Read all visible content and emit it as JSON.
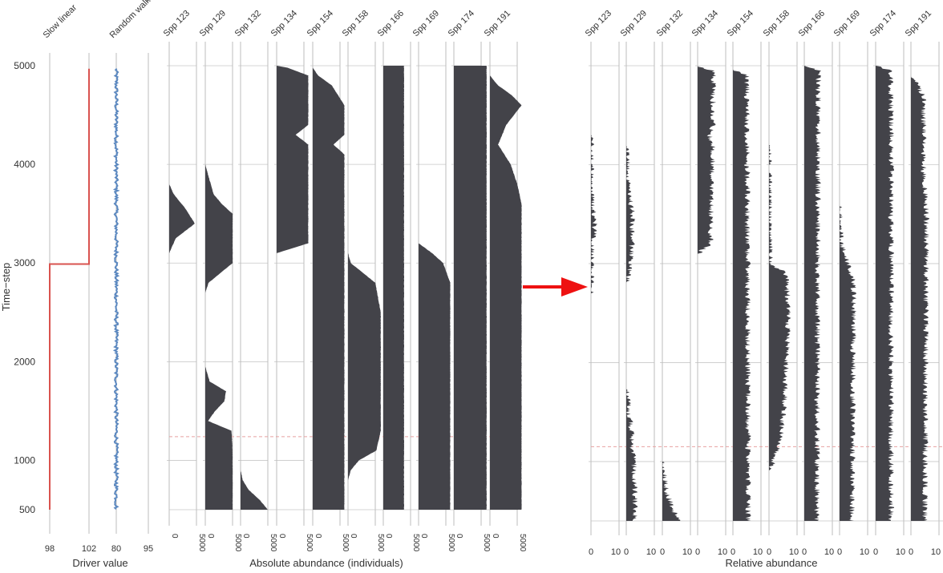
{
  "figure": {
    "ylabel": "Time−step",
    "panel_a_xlabel": "Driver value",
    "panel_b_xlabel": "Absolute abundance (individuals)",
    "panel_c_xlabel": "Relative abundance",
    "dashed_line_color": "#e8a0a0",
    "area_color": "#434349",
    "axis_line_color": "#bdbdbd",
    "arrow_color": "#ee1111"
  },
  "chart_data": [
    {
      "type": "line",
      "title": "",
      "xlabel": "Driver value",
      "ylabel": "Time−step",
      "ylim": [
        500,
        5000
      ],
      "y_ticks": [
        500,
        1000,
        2000,
        3000,
        4000,
        5000
      ],
      "series": [
        {
          "name": "Slow linear",
          "color": "#d9534f",
          "x_ticks": [
            98,
            102
          ],
          "xlim": [
            98,
            102
          ],
          "points": [
            [
              98,
              500
            ],
            [
              98,
              2990
            ],
            [
              102,
              2990
            ],
            [
              102,
              4970
            ]
          ]
        },
        {
          "name": "Random walk",
          "color": "#5b88c0",
          "x_ticks": [
            80,
            95
          ],
          "xlim": [
            80,
            95
          ],
          "anchors": [
            [
              4970,
              80.0
            ],
            [
              4700,
              84.5
            ],
            [
              4500,
              86.5
            ],
            [
              4300,
              84.5
            ],
            [
              4150,
              80.5
            ],
            [
              4000,
              84.0
            ],
            [
              3800,
              85.5
            ],
            [
              3600,
              86.5
            ],
            [
              3400,
              91.0
            ],
            [
              3200,
              93.5
            ],
            [
              3000,
              92.5
            ],
            [
              2800,
              94.5
            ],
            [
              2600,
              91.0
            ],
            [
              2300,
              88.5
            ],
            [
              2000,
              87.5
            ],
            [
              1800,
              89.0
            ],
            [
              1600,
              92.5
            ],
            [
              1400,
              91.5
            ],
            [
              1200,
              88.5
            ],
            [
              1000,
              92.0
            ],
            [
              800,
              92.5
            ],
            [
              600,
              93.5
            ],
            [
              500,
              95.0
            ]
          ]
        }
      ]
    },
    {
      "type": "area",
      "xlabel": "Absolute abundance (individuals)",
      "ylim": [
        500,
        5000
      ],
      "xlim": [
        0,
        5000
      ],
      "x_ticks": [
        0,
        5000
      ],
      "series": [
        {
          "name": "Spp 123",
          "profile": [
            [
              3100,
              0
            ],
            [
              3250,
              1200
            ],
            [
              3400,
              4700
            ],
            [
              3550,
              3000
            ],
            [
              3700,
              800
            ],
            [
              3800,
              0
            ]
          ]
        },
        {
          "name": "Spp 129",
          "profile": [
            [
              500,
              5000
            ],
            [
              1100,
              5000
            ],
            [
              1300,
              4800
            ],
            [
              1400,
              500
            ],
            [
              1500,
              1800
            ],
            [
              1600,
              3500
            ],
            [
              1700,
              3800
            ],
            [
              1800,
              800
            ],
            [
              1950,
              0
            ],
            [
              2700,
              0
            ],
            [
              2800,
              600
            ],
            [
              3000,
              5000
            ],
            [
              3500,
              5000
            ],
            [
              3600,
              3000
            ],
            [
              3700,
              1500
            ],
            [
              3900,
              500
            ],
            [
              4000,
              0
            ]
          ]
        },
        {
          "name": "Spp 132",
          "profile": [
            [
              500,
              5000
            ],
            [
              600,
              3500
            ],
            [
              700,
              1500
            ],
            [
              800,
              400
            ],
            [
              900,
              0
            ]
          ]
        },
        {
          "name": "Spp 134",
          "profile": [
            [
              3100,
              0
            ],
            [
              3200,
              5800
            ],
            [
              4200,
              5800
            ],
            [
              4300,
              3500
            ],
            [
              4400,
              5800
            ],
            [
              4900,
              5800
            ],
            [
              4980,
              2000
            ],
            [
              5000,
              0
            ]
          ]
        },
        {
          "name": "Spp 154",
          "profile": [
            [
              500,
              5800
            ],
            [
              4100,
              5800
            ],
            [
              4200,
              3800
            ],
            [
              4300,
              5800
            ],
            [
              4600,
              5800
            ],
            [
              4800,
              3500
            ],
            [
              4900,
              1000
            ],
            [
              4980,
              0
            ]
          ]
        },
        {
          "name": "Spp 158",
          "profile": [
            [
              800,
              0
            ],
            [
              900,
              500
            ],
            [
              1000,
              2000
            ],
            [
              1100,
              5200
            ],
            [
              1300,
              6000
            ],
            [
              2500,
              6000
            ],
            [
              2800,
              5000
            ],
            [
              3000,
              500
            ],
            [
              3100,
              0
            ]
          ]
        },
        {
          "name": "Spp 166",
          "profile": [
            [
              500,
              3800
            ],
            [
              5000,
              3800
            ]
          ]
        },
        {
          "name": "Spp 169",
          "profile": [
            [
              500,
              5800
            ],
            [
              2800,
              5800
            ],
            [
              3000,
              4500
            ],
            [
              3100,
              2500
            ],
            [
              3200,
              0
            ]
          ]
        },
        {
          "name": "Spp 174",
          "profile": [
            [
              500,
              6000
            ],
            [
              5000,
              6000
            ]
          ]
        },
        {
          "name": "Spp 191",
          "profile": [
            [
              500,
              5800
            ],
            [
              3600,
              5800
            ],
            [
              3800,
              5000
            ],
            [
              4000,
              3800
            ],
            [
              4200,
              1500
            ],
            [
              4400,
              3000
            ],
            [
              4600,
              5800
            ],
            [
              4700,
              4000
            ],
            [
              4800,
              1500
            ],
            [
              4900,
              0
            ]
          ]
        }
      ]
    },
    {
      "type": "area",
      "xlabel": "Relative abundance",
      "ylim": [
        500,
        5000
      ],
      "xlim": [
        0,
        100
      ],
      "x_ticks": [
        0,
        100
      ],
      "tick_label_suffix": "0",
      "series": [
        {
          "name": "Spp 123",
          "profile": [
            [
              2700,
              0
            ],
            [
              3200,
              4
            ],
            [
              3400,
              15
            ],
            [
              3550,
              8
            ],
            [
              3700,
              2
            ],
            [
              4300,
              0
            ]
          ]
        },
        {
          "name": "Spp 129",
          "profile": [
            [
              400,
              30
            ],
            [
              800,
              30
            ],
            [
              1200,
              22
            ],
            [
              1500,
              10
            ],
            [
              1650,
              5
            ],
            [
              1750,
              0
            ],
            [
              2800,
              0
            ],
            [
              3000,
              18
            ],
            [
              3500,
              22
            ],
            [
              3700,
              10
            ],
            [
              4200,
              0
            ]
          ]
        },
        {
          "name": "Spp 132",
          "profile": [
            [
              400,
              60
            ],
            [
              500,
              40
            ],
            [
              700,
              15
            ],
            [
              1000,
              0
            ],
            [
              1850,
              0
            ]
          ]
        },
        {
          "name": "Spp 134",
          "profile": [
            [
              3100,
              0
            ],
            [
              3200,
              45
            ],
            [
              4200,
              55
            ],
            [
              4300,
              40
            ],
            [
              4400,
              55
            ],
            [
              4950,
              55
            ],
            [
              5000,
              0
            ]
          ]
        },
        {
          "name": "Spp 154",
          "profile": [
            [
              400,
              55
            ],
            [
              4900,
              50
            ],
            [
              4970,
              0
            ]
          ]
        },
        {
          "name": "Spp 158",
          "profile": [
            [
              900,
              0
            ],
            [
              1000,
              15
            ],
            [
              1200,
              40
            ],
            [
              1600,
              55
            ],
            [
              2500,
              70
            ],
            [
              2900,
              60
            ],
            [
              3000,
              5
            ],
            [
              4200,
              0
            ]
          ]
        },
        {
          "name": "Spp 166",
          "profile": [
            [
              400,
              45
            ],
            [
              4950,
              50
            ],
            [
              5000,
              0
            ]
          ]
        },
        {
          "name": "Spp 169",
          "profile": [
            [
              400,
              45
            ],
            [
              2800,
              50
            ],
            [
              3000,
              30
            ],
            [
              3200,
              5
            ],
            [
              3600,
              0
            ]
          ]
        },
        {
          "name": "Spp 174",
          "profile": [
            [
              400,
              55
            ],
            [
              4950,
              55
            ],
            [
              5000,
              0
            ]
          ]
        },
        {
          "name": "Spp 191",
          "profile": [
            [
              400,
              50
            ],
            [
              3500,
              55
            ],
            [
              4000,
              45
            ],
            [
              4700,
              45
            ],
            [
              4900,
              0
            ]
          ]
        }
      ]
    }
  ],
  "annotations": {
    "dashed_line_time": 1240
  }
}
